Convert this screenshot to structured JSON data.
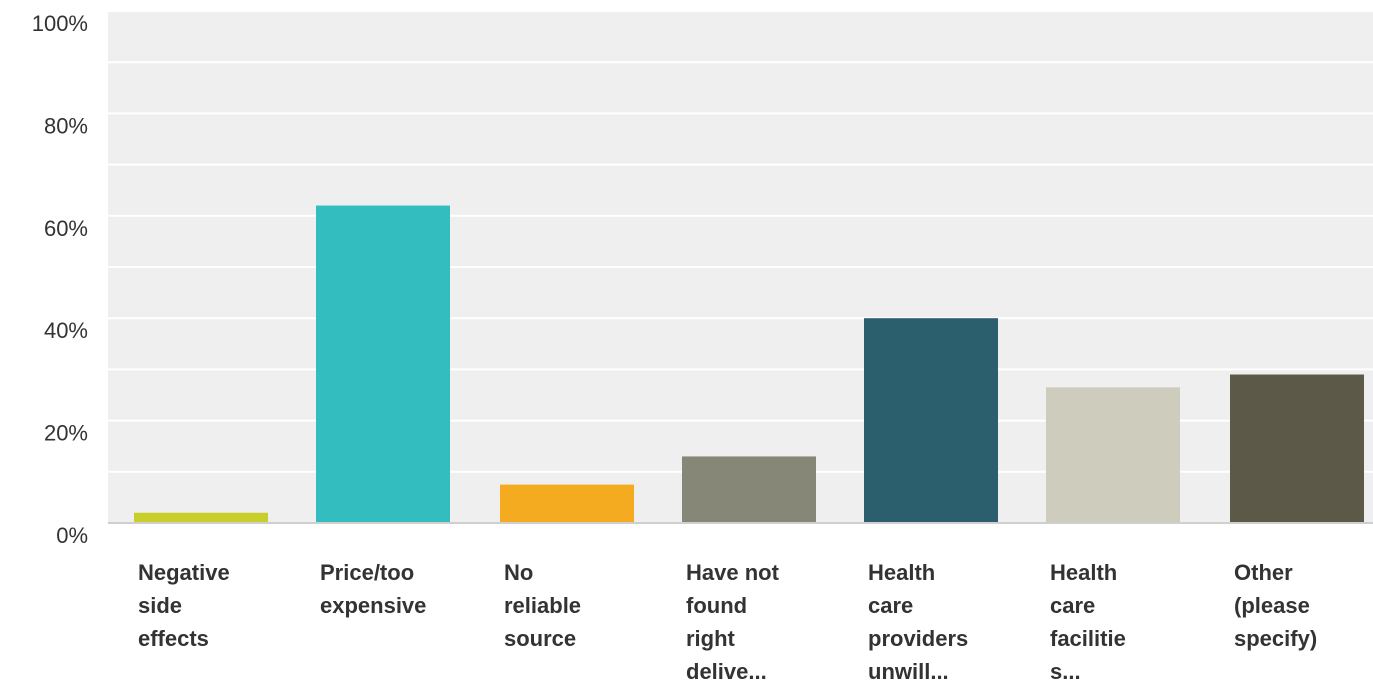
{
  "chart_data": {
    "type": "bar",
    "title": "",
    "xlabel": "",
    "ylabel": "",
    "ylim": [
      0,
      100
    ],
    "y_ticks": [
      "0%",
      "20%",
      "40%",
      "60%",
      "80%",
      "100%"
    ],
    "y_tick_values": [
      0,
      20,
      40,
      60,
      80,
      100
    ],
    "grid": true,
    "plot_background": "#efefef",
    "categories": [
      {
        "label_lines": [
          "Negative",
          "side",
          "effects"
        ],
        "value": 2,
        "color": "#c8cf2a"
      },
      {
        "label_lines": [
          "Price/too",
          "expensive"
        ],
        "value": 62,
        "color": "#34bdbf"
      },
      {
        "label_lines": [
          "No",
          "reliable",
          "source"
        ],
        "value": 7.5,
        "color": "#f5ab1f"
      },
      {
        "label_lines": [
          "Have not",
          "found",
          "right",
          "delive..."
        ],
        "value": 13,
        "color": "#878777"
      },
      {
        "label_lines": [
          "Health",
          "care",
          "providers",
          "unwill..."
        ],
        "value": 40,
        "color": "#2c5f6e"
      },
      {
        "label_lines": [
          "Health",
          "care",
          "facilitie",
          "s..."
        ],
        "value": 26.5,
        "color": "#ceccbd"
      },
      {
        "label_lines": [
          "Other",
          "(please",
          "specify)"
        ],
        "value": 29,
        "color": "#5c5949"
      }
    ]
  }
}
